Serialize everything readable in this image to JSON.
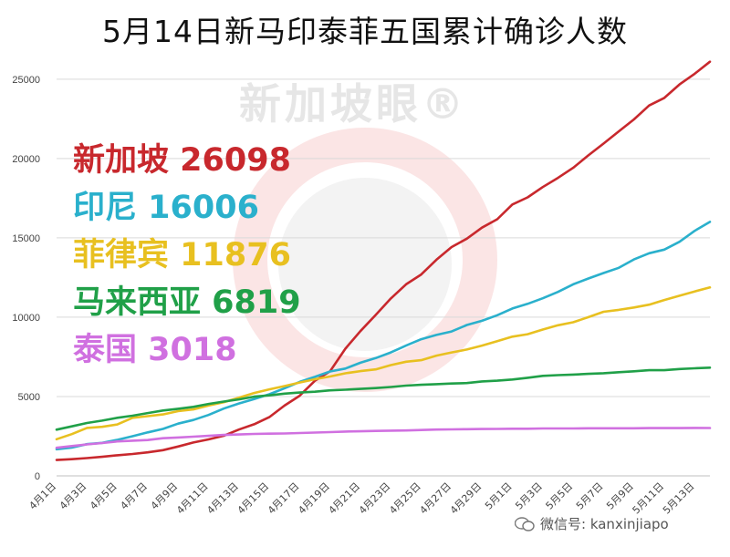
{
  "chart_data": {
    "type": "line",
    "title": "5月14日新马印泰菲五国累计确诊人数",
    "ylim": [
      0,
      27000
    ],
    "yticks": [
      0,
      5000,
      10000,
      15000,
      20000,
      25000
    ],
    "x": [
      "4月1日",
      "4月2日",
      "4月3日",
      "4月4日",
      "4月5日",
      "4月6日",
      "4月7日",
      "4月8日",
      "4月9日",
      "4月10日",
      "4月11日",
      "4月12日",
      "4月13日",
      "4月14日",
      "4月15日",
      "4月16日",
      "4月17日",
      "4月18日",
      "4月19日",
      "4月20日",
      "4月21日",
      "4月22日",
      "4月23日",
      "4月24日",
      "4月25日",
      "4月26日",
      "4月27日",
      "4月28日",
      "4月29日",
      "4月30日",
      "5月1日",
      "5月2日",
      "5月3日",
      "5月4日",
      "5月5日",
      "5月6日",
      "5月7日",
      "5月8日",
      "5月9日",
      "5月10日",
      "5月11日",
      "5月12日",
      "5月13日",
      "5月14日"
    ],
    "xtick_labels": [
      "4月1日",
      "4月3日",
      "4月5日",
      "4月7日",
      "4月9日",
      "4月11日",
      "4月13日",
      "4月15日",
      "4月17日",
      "4月19日",
      "4月21日",
      "4月23日",
      "4月25日",
      "4月27日",
      "4月29日",
      "5月1日",
      "5月3日",
      "5月5日",
      "5月7日",
      "5月9日",
      "5月11日",
      "5月13日"
    ],
    "series": [
      {
        "name": "新加坡",
        "color": "#c8282d",
        "values": [
          1000,
          1050,
          1120,
          1200,
          1300,
          1380,
          1480,
          1620,
          1850,
          2100,
          2300,
          2530,
          2920,
          3250,
          3700,
          4430,
          5050,
          5990,
          6590,
          8010,
          9120,
          10140,
          11180,
          12070,
          12690,
          13620,
          14420,
          14950,
          15640,
          16170,
          17100,
          17550,
          18200,
          18780,
          19410,
          20200,
          20940,
          21710,
          22460,
          23340,
          23820,
          24670,
          25340,
          26098
        ]
      },
      {
        "name": "印尼",
        "color": "#2ab0cc",
        "values": [
          1680,
          1780,
          2000,
          2080,
          2270,
          2500,
          2740,
          2960,
          3290,
          3520,
          3840,
          4240,
          4560,
          4840,
          5140,
          5520,
          5920,
          6240,
          6580,
          6760,
          7130,
          7420,
          7780,
          8210,
          8610,
          8880,
          9100,
          9510,
          9770,
          10120,
          10550,
          10840,
          11190,
          11590,
          12070,
          12440,
          12780,
          13110,
          13640,
          14030,
          14260,
          14750,
          15440,
          16006
        ]
      },
      {
        "name": "菲律宾",
        "color": "#e8c020",
        "values": [
          2310,
          2630,
          3020,
          3090,
          3240,
          3660,
          3760,
          3870,
          4080,
          4190,
          4430,
          4640,
          4930,
          5220,
          5450,
          5660,
          5880,
          6090,
          6260,
          6460,
          6600,
          6710,
          6980,
          7190,
          7290,
          7580,
          7780,
          7960,
          8210,
          8490,
          8770,
          8930,
          9220,
          9490,
          9680,
          10000,
          10340,
          10460,
          10610,
          10790,
          11080,
          11350,
          11620,
          11876
        ]
      },
      {
        "name": "马来西亚",
        "color": "#20a048",
        "values": [
          2910,
          3120,
          3330,
          3480,
          3660,
          3790,
          3960,
          4120,
          4230,
          4350,
          4530,
          4680,
          4820,
          4990,
          5070,
          5180,
          5250,
          5300,
          5390,
          5430,
          5480,
          5530,
          5600,
          5690,
          5740,
          5780,
          5820,
          5850,
          5950,
          6000,
          6070,
          6180,
          6300,
          6350,
          6380,
          6430,
          6470,
          6530,
          6590,
          6660,
          6660,
          6730,
          6780,
          6819
        ]
      },
      {
        "name": "泰国",
        "color": "#d070e0",
        "values": [
          1770,
          1880,
          1980,
          2070,
          2170,
          2220,
          2260,
          2370,
          2420,
          2470,
          2520,
          2580,
          2610,
          2640,
          2660,
          2670,
          2700,
          2730,
          2760,
          2790,
          2810,
          2830,
          2850,
          2860,
          2890,
          2920,
          2930,
          2940,
          2950,
          2960,
          2970,
          2970,
          2990,
          2990,
          2990,
          3000,
          3000,
          3000,
          3000,
          3010,
          3010,
          3010,
          3020,
          3018
        ]
      }
    ],
    "legend_labels": [
      "新加坡 26098",
      "印尼 16006",
      "菲律宾 11876",
      "马来西亚 6819",
      "泰国 3018"
    ]
  },
  "watermark": "新加坡眼®",
  "wechat_credit": "微信号: kanxinjiapo"
}
